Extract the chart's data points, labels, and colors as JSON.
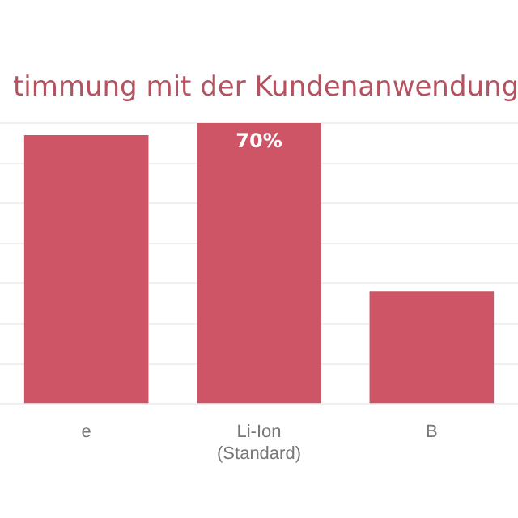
{
  "chart_data": {
    "type": "bar",
    "title": "timmung mit der Kundenanwendung",
    "categories": [
      "e",
      "Li-Ion (Standard)",
      "B"
    ],
    "values": [
      67,
      70,
      28
    ],
    "color": "#cd5566",
    "value_labels": [
      null,
      "70%",
      null
    ],
    "ylim": [
      0,
      70
    ],
    "yticks": [
      {
        "value": 0,
        "label": null
      },
      {
        "value": 10,
        "label": null
      },
      {
        "value": 20,
        "label": null
      },
      {
        "value": 30,
        "label": null
      },
      {
        "value": 40,
        "label": null
      },
      {
        "value": 50,
        "label": null
      },
      {
        "value": 60,
        "label": null
      },
      {
        "value": 70,
        "label": null
      }
    ],
    "tick_labels": "x",
    "grid": "y",
    "legend": false
  }
}
